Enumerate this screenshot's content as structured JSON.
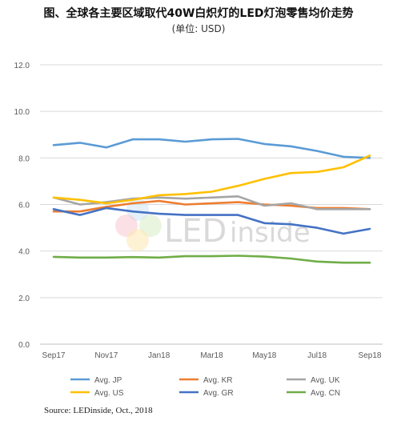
{
  "title": "图、全球各主要区域取代40W白炽灯的LED灯泡零售均价走势",
  "subtitle": "(单位: USD)",
  "source": "Source: LEDinside, Oct., 2018",
  "watermark": {
    "text_a": "LED",
    "text_b": "inside"
  },
  "chart_data": {
    "type": "line",
    "title": "图、全球各主要区域取代40W白炽灯的LED灯泡零售均价走势",
    "ylabel": "(单位: USD)",
    "xlabel": "",
    "ylim": [
      0,
      12
    ],
    "yticks": [
      "0.0",
      "2.0",
      "4.0",
      "6.0",
      "8.0",
      "10.0",
      "12.0"
    ],
    "ytick_values": [
      0,
      2,
      4,
      6,
      8,
      10,
      12
    ],
    "grid": true,
    "legend": "bottom",
    "x": [
      "Sep17",
      "Oct17",
      "Nov17",
      "Dec17",
      "Jan18",
      "Feb18",
      "Mar18",
      "Apr18",
      "May18",
      "Jun18",
      "Jul18",
      "Aug18",
      "Sep18"
    ],
    "xtick_labels": [
      "Sep17",
      "",
      "Nov17",
      "",
      "Jan18",
      "",
      "Mar18",
      "",
      "May18",
      "",
      "Jul18",
      "",
      "Sep18"
    ],
    "series": [
      {
        "name": "Avg. JP",
        "color": "#5B9BD5",
        "values": [
          8.55,
          8.65,
          8.45,
          8.8,
          8.8,
          8.7,
          8.8,
          8.82,
          8.6,
          8.5,
          8.3,
          8.05,
          8.0
        ]
      },
      {
        "name": "Avg. KR",
        "color": "#ED7D31",
        "values": [
          5.7,
          5.7,
          5.9,
          6.05,
          6.15,
          6.0,
          6.05,
          6.1,
          6.0,
          5.95,
          5.85,
          5.85,
          5.8
        ]
      },
      {
        "name": "Avg. UK",
        "color": "#A5A5A5",
        "values": [
          6.3,
          6.0,
          6.1,
          6.25,
          6.3,
          6.25,
          6.3,
          6.35,
          5.95,
          6.05,
          5.8,
          5.8,
          5.8
        ]
      },
      {
        "name": "Avg. US",
        "color": "#FFC000",
        "values": [
          6.3,
          6.2,
          6.05,
          6.2,
          6.4,
          6.45,
          6.55,
          6.8,
          7.1,
          7.35,
          7.4,
          7.6,
          8.1
        ]
      },
      {
        "name": "Avg. GR",
        "color": "#4472C4",
        "values": [
          5.8,
          5.55,
          5.85,
          5.7,
          5.6,
          5.55,
          5.55,
          5.55,
          5.2,
          5.15,
          5.0,
          4.75,
          4.95
        ]
      },
      {
        "name": "Avg. CN",
        "color": "#70AD47",
        "values": [
          3.75,
          3.72,
          3.72,
          3.74,
          3.72,
          3.78,
          3.78,
          3.8,
          3.76,
          3.68,
          3.55,
          3.5,
          3.5
        ]
      }
    ]
  }
}
